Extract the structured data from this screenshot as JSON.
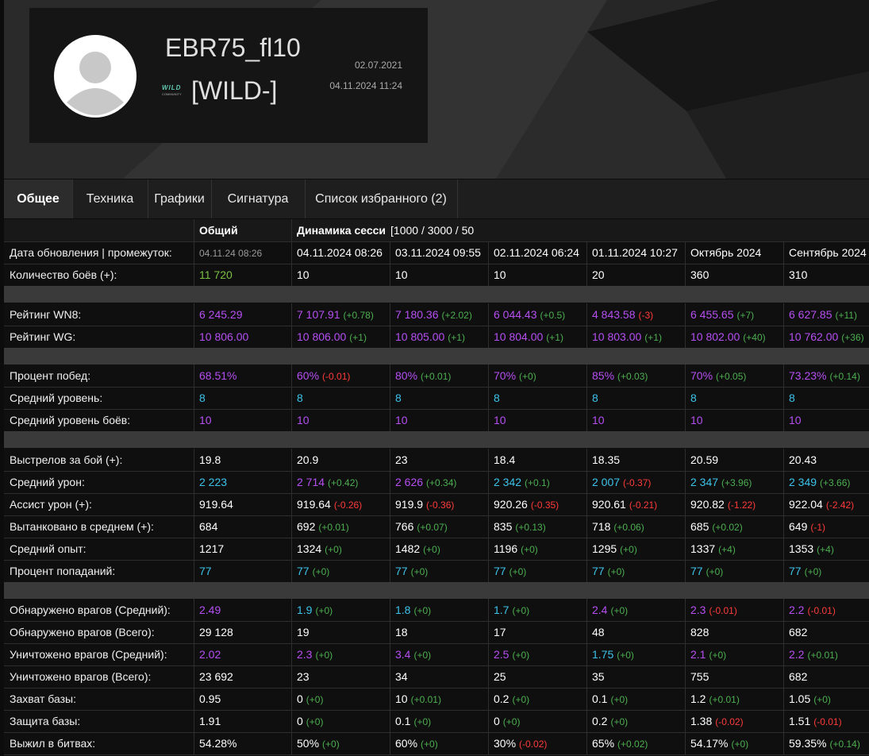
{
  "profile": {
    "name": "EBR75_fl10",
    "clan_logo": "WILD",
    "clan_logo_sub": "COMMUNITY",
    "clan": "[WILD-]",
    "created": "02.07.2021",
    "last_battle": "04.11.2024 11:24"
  },
  "tabs": [
    "Общее",
    "Техника",
    "Графики",
    "Сигнатура",
    "Список избранного (2)"
  ],
  "table": {
    "header": [
      "Общий",
      "Динамика сесси",
      "[1000 / 3000 / 50"
    ],
    "colors": {
      "purple": "#b64ff2",
      "cyan": "#3cc3ea",
      "green": "#79c043",
      "grey": "#9a9a9a",
      "plus": "#4caf50",
      "minus": "#ff3b3b"
    },
    "sections": [
      [
        {
          "label": "Дата обновления | промежуток:",
          "cells": [
            {
              "text": "04.11.24 08:26",
              "color": "grey"
            },
            "04.11.2024 08:26",
            "03.11.2024 09:55",
            "02.11.2024 06:24",
            "01.11.2024 10:27",
            "Октябрь 2024",
            "Сентябрь 2024"
          ]
        },
        {
          "label": "Количество боёв (+):",
          "cells": [
            {
              "text": "11 720",
              "color": "green"
            },
            "10",
            "10",
            "10",
            "20",
            "360",
            "310"
          ]
        }
      ],
      [
        {
          "label": "Рейтинг WN8:",
          "color": "purple",
          "cells": [
            "6 245.29",
            {
              "text": "7 107.91",
              "delta": "(+0.78)"
            },
            {
              "text": "7 180.36",
              "delta": "(+2.02)"
            },
            {
              "text": "6 044.43",
              "delta": "(+0.5)"
            },
            {
              "text": "4 843.58",
              "delta": "(-3)"
            },
            {
              "text": "6 455.65",
              "delta": "(+7)"
            },
            {
              "text": "6 627.85",
              "delta": "(+11)"
            }
          ]
        },
        {
          "label": "Рейтинг WG:",
          "color": "purple",
          "cells": [
            "10 806.00",
            {
              "text": "10 806.00",
              "delta": "(+1)"
            },
            {
              "text": "10 805.00",
              "delta": "(+1)"
            },
            {
              "text": "10 804.00",
              "delta": "(+1)"
            },
            {
              "text": "10 803.00",
              "delta": "(+1)"
            },
            {
              "text": "10 802.00",
              "delta": "(+40)"
            },
            {
              "text": "10 762.00",
              "delta": "(+36)"
            }
          ]
        }
      ],
      [
        {
          "label": "Процент побед:",
          "color": "purple",
          "cells": [
            "68.51%",
            {
              "text": "60%",
              "delta": "(-0.01)"
            },
            {
              "text": "80%",
              "delta": "(+0.01)"
            },
            {
              "text": "70%",
              "delta": "(+0)"
            },
            {
              "text": "85%",
              "delta": "(+0.03)"
            },
            {
              "text": "70%",
              "delta": "(+0.05)"
            },
            {
              "text": "73.23%",
              "delta": "(+0.14)"
            }
          ]
        },
        {
          "label": "Средний уровень:",
          "color": "cyan",
          "cells": [
            "8",
            "8",
            "8",
            "8",
            "8",
            "8",
            "8"
          ]
        },
        {
          "label": "Средний уровень боёв:",
          "color": "purple",
          "cells": [
            "10",
            "10",
            "10",
            "10",
            "10",
            "10",
            "10"
          ]
        }
      ],
      [
        {
          "label": "Выстрелов за бой (+):",
          "cells": [
            "19.8",
            "20.9",
            "23",
            "18.4",
            "18.35",
            "20.59",
            "20.43"
          ]
        },
        {
          "label": "Средний урон:",
          "color": "cyan",
          "cells": [
            "2 223",
            {
              "text": "2 714",
              "delta": "(+0.42)",
              "color": "purple"
            },
            {
              "text": "2 626",
              "delta": "(+0.34)",
              "color": "purple"
            },
            {
              "text": "2 342",
              "delta": "(+0.1)"
            },
            {
              "text": "2 007",
              "delta": "(-0.37)"
            },
            {
              "text": "2 347",
              "delta": "(+3.96)"
            },
            {
              "text": "2 349",
              "delta": "(+3.66)"
            }
          ]
        },
        {
          "label": "Ассист урон (+):",
          "cells": [
            "919.64",
            {
              "text": "919.64",
              "delta": "(-0.26)"
            },
            {
              "text": "919.9",
              "delta": "(-0.36)"
            },
            {
              "text": "920.26",
              "delta": "(-0.35)"
            },
            {
              "text": "920.61",
              "delta": "(-0.21)"
            },
            {
              "text": "920.82",
              "delta": "(-1.22)"
            },
            {
              "text": "922.04",
              "delta": "(-2.42)"
            }
          ]
        },
        {
          "label": "Вытанковано в среднем (+):",
          "cells": [
            "684",
            {
              "text": "692",
              "delta": "(+0.01)"
            },
            {
              "text": "766",
              "delta": "(+0.07)"
            },
            {
              "text": "835",
              "delta": "(+0.13)"
            },
            {
              "text": "718",
              "delta": "(+0.06)"
            },
            {
              "text": "685",
              "delta": "(+0.02)"
            },
            {
              "text": "649",
              "delta": "(-1)"
            }
          ]
        },
        {
          "label": "Средний опыт:",
          "cells": [
            "1217",
            {
              "text": "1324",
              "delta": "(+0)"
            },
            {
              "text": "1482",
              "delta": "(+0)"
            },
            {
              "text": "1196",
              "delta": "(+0)"
            },
            {
              "text": "1295",
              "delta": "(+0)"
            },
            {
              "text": "1337",
              "delta": "(+4)"
            },
            {
              "text": "1353",
              "delta": "(+4)"
            }
          ]
        },
        {
          "label": "Процент попаданий:",
          "color": "cyan",
          "cells": [
            "77",
            {
              "text": "77",
              "delta": "(+0)"
            },
            {
              "text": "77",
              "delta": "(+0)"
            },
            {
              "text": "77",
              "delta": "(+0)"
            },
            {
              "text": "77",
              "delta": "(+0)"
            },
            {
              "text": "77",
              "delta": "(+0)"
            },
            {
              "text": "77",
              "delta": "(+0)"
            }
          ]
        }
      ],
      [
        {
          "label": "Обнаружено врагов (Средний):",
          "color": "purple",
          "cells": [
            "2.49",
            {
              "text": "1.9",
              "delta": "(+0)",
              "color": "cyan"
            },
            {
              "text": "1.8",
              "delta": "(+0)",
              "color": "cyan"
            },
            {
              "text": "1.7",
              "delta": "(+0)",
              "color": "cyan"
            },
            {
              "text": "2.4",
              "delta": "(+0)"
            },
            {
              "text": "2.3",
              "delta": "(-0.01)"
            },
            {
              "text": "2.2",
              "delta": "(-0.01)"
            }
          ]
        },
        {
          "label": "Обнаружено врагов (Всего):",
          "cells": [
            "29 128",
            "19",
            "18",
            "17",
            "48",
            "828",
            "682"
          ]
        },
        {
          "label": "Уничтожено врагов (Средний):",
          "color": "purple",
          "cells": [
            "2.02",
            {
              "text": "2.3",
              "delta": "(+0)"
            },
            {
              "text": "3.4",
              "delta": "(+0)"
            },
            {
              "text": "2.5",
              "delta": "(+0)"
            },
            {
              "text": "1.75",
              "delta": "(+0)",
              "color": "cyan"
            },
            {
              "text": "2.1",
              "delta": "(+0)"
            },
            {
              "text": "2.2",
              "delta": "(+0.01)"
            }
          ]
        },
        {
          "label": "Уничтожено врагов (Всего):",
          "cells": [
            "23 692",
            "23",
            "34",
            "25",
            "35",
            "755",
            "682"
          ]
        },
        {
          "label": "Захват базы:",
          "cells": [
            "0.95",
            {
              "text": "0",
              "delta": "(+0)"
            },
            {
              "text": "10",
              "delta": "(+0.01)"
            },
            {
              "text": "0.2",
              "delta": "(+0)"
            },
            {
              "text": "0.1",
              "delta": "(+0)"
            },
            {
              "text": "1.2",
              "delta": "(+0.01)"
            },
            {
              "text": "1.05",
              "delta": "(+0)"
            }
          ]
        },
        {
          "label": "Защита базы:",
          "cells": [
            "1.91",
            {
              "text": "0",
              "delta": "(+0)"
            },
            {
              "text": "0.1",
              "delta": "(+0)"
            },
            {
              "text": "0",
              "delta": "(+0)"
            },
            {
              "text": "0.2",
              "delta": "(+0)"
            },
            {
              "text": "1.38",
              "delta": "(-0.02)"
            },
            {
              "text": "1.51",
              "delta": "(-0.01)"
            }
          ]
        },
        {
          "label": "Выжил в битвах:",
          "cells": [
            "54.28%",
            {
              "text": "50%",
              "delta": "(+0)"
            },
            {
              "text": "60%",
              "delta": "(+0)"
            },
            {
              "text": "30%",
              "delta": "(-0.02)"
            },
            {
              "text": "65%",
              "delta": "(+0.02)"
            },
            {
              "text": "54.17%",
              "delta": "(+0)"
            },
            {
              "text": "59.35%",
              "delta": "(+0.14)"
            }
          ]
        }
      ]
    ]
  }
}
